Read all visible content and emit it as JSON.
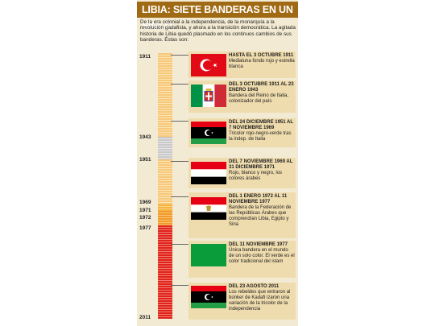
{
  "title": "LIBIA: SIETE BANDERAS EN UN SIGLO",
  "intro": "De la era colonial a la independencia, de la monarquía a la revolución gadafista, y ahora a la transición democrática. La agitada historia de Libia quedó plasmado en los continuos cambios de sus banderas. Éstas son:",
  "colors": {
    "header": "#a06a14",
    "panel": "#f3ead3",
    "box": "#efdcae",
    "stripe_yellow": "#f7c87a",
    "stripe_grey": "#c9c9c9",
    "stripe_red": "#e0231b"
  },
  "years": [
    "1911",
    "1943",
    "1951",
    "1969",
    "1971",
    "1972",
    "1977",
    "2011"
  ],
  "entries": [
    {
      "date": "HASTA EL 3 OCTUBRE 1911",
      "desc": "Medialuna fondo rojo y estrella blanca",
      "flag_icon": "ottoman-flag-icon"
    },
    {
      "date": "DEL 3 OCTUBRE 1911 AL 23 ENERO 1943",
      "desc": "Bandera del Reino de Italia, colonizador del país",
      "flag_icon": "kingdom-of-italy-flag-icon"
    },
    {
      "date": "DEL 24 DICIEMBRE 1951 AL 7 NOVIEMBRE 1969",
      "desc": "Tricolor rojo-negro-verde tras la indep. de Italia",
      "flag_icon": "kingdom-of-libya-flag-icon"
    },
    {
      "date": "DEL 7 NOVIEMBRE 1969 AL 31 DICIEMBRE 1971",
      "desc": "Rojo, blanco y negro, los colores árabes",
      "flag_icon": "libyan-arab-republic-flag-icon"
    },
    {
      "date": "DEL 1 ENERO 1972 AL 11 NOVIEMBRE 1977",
      "desc": "Bandera de la Federación de las Repúblicas Árabes que comprendían Libia, Egipto y Siria",
      "flag_icon": "federation-arab-republics-flag-icon"
    },
    {
      "date": "DEL 11 NOVIEMBRE 1977",
      "desc": "Única bandera en el mundo de un solo color. El verde es el color tradicional del islam",
      "flag_icon": "green-jamahiriya-flag-icon"
    },
    {
      "date": "DEL 23 AGOSTO 2011",
      "desc": "Los rebeldes que entraron al búnker de Kadafi izaron una variación de la tricolor de la independencia",
      "flag_icon": "libya-independence-tricolor-flag-icon"
    }
  ]
}
